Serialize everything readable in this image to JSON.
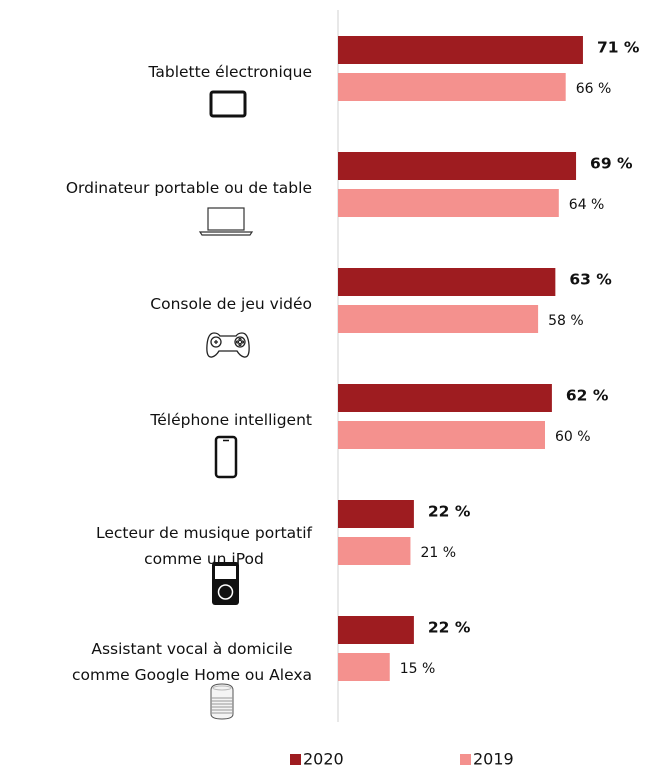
{
  "chart_data": {
    "type": "bar",
    "orientation": "horizontal",
    "categories": [
      "Tablette électronique",
      "Ordinateur portable ou de table",
      "Console de jeu vidéo",
      "Téléphone intelligent",
      "Lecteur de musique portatif\ncomme un iPod",
      "Assistant vocal à domicile\ncomme Google Home ou Alexa"
    ],
    "series": [
      {
        "name": "2020",
        "color": "#9e1c20",
        "values": [
          71,
          69,
          63,
          62,
          22,
          22
        ],
        "value_labels": [
          "71 %",
          "69 %",
          "63 %",
          "62 %",
          "22 %",
          "22 %"
        ]
      },
      {
        "name": "2019",
        "color": "#f4918e",
        "values": [
          66,
          64,
          58,
          60,
          21,
          15
        ],
        "value_labels": [
          "66 %",
          "64 %",
          "58 %",
          "60 %",
          "21 %",
          "15 %"
        ]
      }
    ]
  }
}
